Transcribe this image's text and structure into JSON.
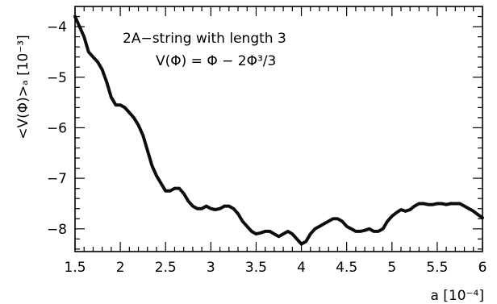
{
  "chart_data": {
    "type": "line",
    "xlabel": "a [10⁻⁴]",
    "ylabel": "<V(Φ)>ₐ [10⁻³]",
    "xlim": [
      1.5,
      6.0
    ],
    "ylim": [
      -8.45,
      -3.6
    ],
    "xticks": [
      1.5,
      2,
      2.5,
      3,
      3.5,
      4,
      4.5,
      5,
      5.5,
      6
    ],
    "xtick_labels": [
      "1.5",
      "2",
      "2.5",
      "3",
      "3.5",
      "4",
      "4.5",
      "5",
      "5.5",
      "6"
    ],
    "yticks": [
      -8,
      -7,
      -6,
      -5,
      -4
    ],
    "ytick_labels": [
      "−8",
      "−7",
      "−6",
      "−5",
      "−4"
    ],
    "annotation_lines": [
      "2A−string with length 3",
      "V(Φ) = Φ − 2Φ³/3"
    ],
    "grid": false,
    "series": [
      {
        "x": [
          1.5,
          1.55,
          1.6,
          1.65,
          1.7,
          1.75,
          1.8,
          1.85,
          1.9,
          1.95,
          2.0,
          2.05,
          2.1,
          2.15,
          2.2,
          2.25,
          2.3,
          2.35,
          2.4,
          2.45,
          2.5,
          2.55,
          2.6,
          2.65,
          2.7,
          2.75,
          2.8,
          2.85,
          2.9,
          2.95,
          3.0,
          3.05,
          3.1,
          3.15,
          3.2,
          3.25,
          3.3,
          3.35,
          3.4,
          3.45,
          3.5,
          3.55,
          3.6,
          3.65,
          3.7,
          3.75,
          3.8,
          3.85,
          3.9,
          3.95,
          4.0,
          4.05,
          4.1,
          4.15,
          4.2,
          4.25,
          4.3,
          4.35,
          4.4,
          4.45,
          4.5,
          4.55,
          4.6,
          4.65,
          4.7,
          4.75,
          4.8,
          4.85,
          4.9,
          4.95,
          5.0,
          5.05,
          5.1,
          5.15,
          5.2,
          5.25,
          5.3,
          5.35,
          5.4,
          5.45,
          5.5,
          5.55,
          5.6,
          5.65,
          5.7,
          5.75,
          5.8,
          5.85,
          5.9,
          5.95,
          6.0
        ],
        "y": [
          -3.8,
          -4.0,
          -4.2,
          -4.5,
          -4.6,
          -4.7,
          -4.85,
          -5.1,
          -5.4,
          -5.55,
          -5.55,
          -5.6,
          -5.7,
          -5.8,
          -5.95,
          -6.15,
          -6.45,
          -6.75,
          -6.95,
          -7.1,
          -7.25,
          -7.25,
          -7.2,
          -7.2,
          -7.3,
          -7.45,
          -7.55,
          -7.6,
          -7.6,
          -7.55,
          -7.6,
          -7.62,
          -7.6,
          -7.55,
          -7.55,
          -7.6,
          -7.7,
          -7.85,
          -7.95,
          -8.05,
          -8.1,
          -8.08,
          -8.05,
          -8.05,
          -8.1,
          -8.15,
          -8.1,
          -8.05,
          -8.1,
          -8.2,
          -8.3,
          -8.25,
          -8.1,
          -8.0,
          -7.95,
          -7.9,
          -7.85,
          -7.8,
          -7.8,
          -7.85,
          -7.95,
          -8.0,
          -8.05,
          -8.05,
          -8.03,
          -8.0,
          -8.05,
          -8.05,
          -8.0,
          -7.85,
          -7.75,
          -7.68,
          -7.62,
          -7.65,
          -7.62,
          -7.55,
          -7.5,
          -7.5,
          -7.52,
          -7.52,
          -7.5,
          -7.5,
          -7.52,
          -7.5,
          -7.5,
          -7.5,
          -7.55,
          -7.6,
          -7.65,
          -7.72,
          -7.78
        ]
      }
    ]
  }
}
